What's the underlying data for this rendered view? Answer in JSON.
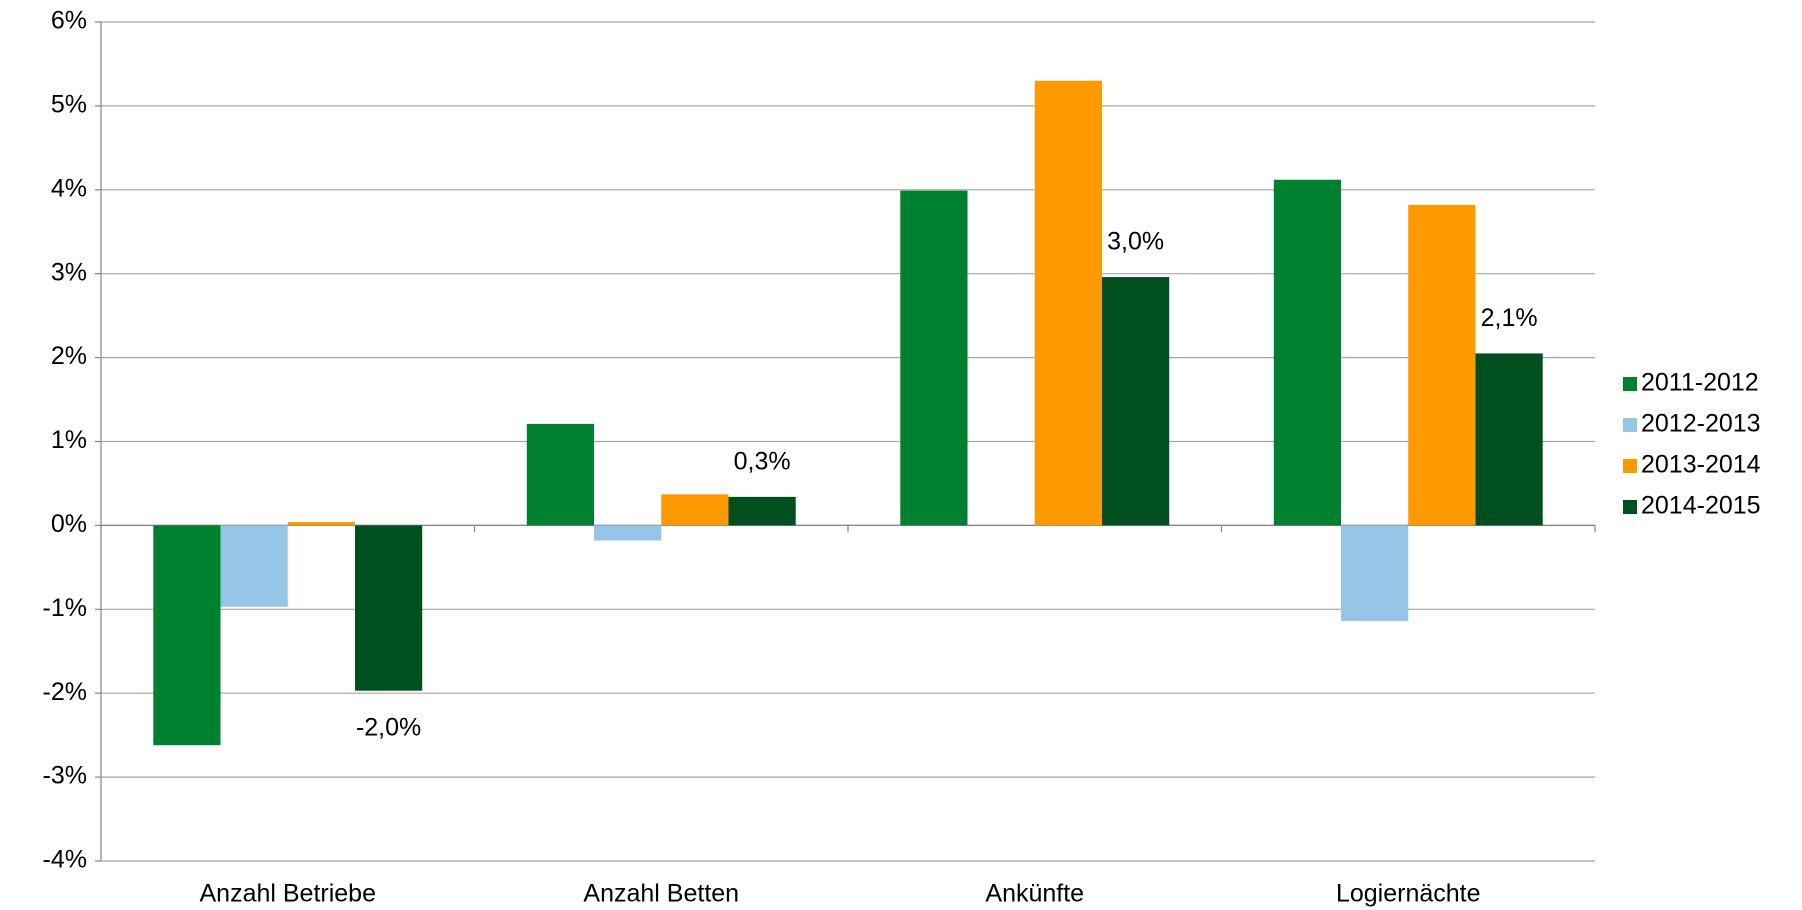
{
  "chart_data": {
    "type": "bar",
    "categories": [
      "Anzahl Betriebe",
      "Anzahl Betten",
      "Ankünfte",
      "Logiernächte"
    ],
    "series": [
      {
        "name": "2011-2012",
        "color": "#00812f",
        "values": [
          -2.62,
          1.21,
          3.99,
          4.12
        ]
      },
      {
        "name": "2012-2013",
        "color": "#95c6e7",
        "values": [
          -0.97,
          -0.18,
          0,
          -1.14
        ]
      },
      {
        "name": "2013-2014",
        "color": "#ff9900",
        "values": [
          0.04,
          0.37,
          5.3,
          3.82
        ]
      },
      {
        "name": "2014-2015",
        "color": "#004f1f",
        "values": [
          -1.97,
          0.34,
          2.96,
          2.05
        ],
        "value_labels": [
          "-2,0%",
          "0,3%",
          "3,0%",
          "2,1%"
        ]
      }
    ],
    "ylim": [
      -4,
      6
    ],
    "yticks": [
      {
        "value": -4,
        "label": "-4%"
      },
      {
        "value": -3,
        "label": "-3%"
      },
      {
        "value": -2,
        "label": "-2%"
      },
      {
        "value": -1,
        "label": "-1%"
      },
      {
        "value": 0,
        "label": "0%"
      },
      {
        "value": 1,
        "label": "1%"
      },
      {
        "value": 2,
        "label": "2%"
      },
      {
        "value": 3,
        "label": "3%"
      },
      {
        "value": 4,
        "label": "4%"
      },
      {
        "value": 5,
        "label": "5%"
      },
      {
        "value": 6,
        "label": "6%"
      }
    ],
    "grid": true,
    "legend": "right"
  }
}
